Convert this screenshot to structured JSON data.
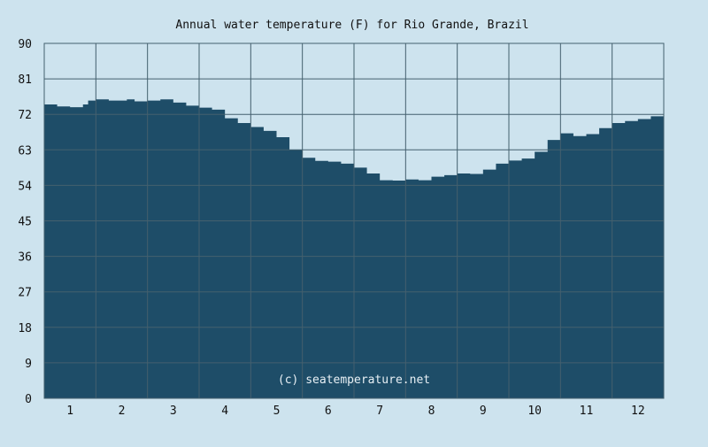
{
  "chart_data": {
    "type": "area",
    "title": "Annual water temperature (F) for Rio Grande, Brazil",
    "xlabel": "",
    "ylabel": "",
    "ylim": [
      0,
      90
    ],
    "yticks": [
      "0",
      "9",
      "18",
      "27",
      "36",
      "45",
      "54",
      "63",
      "72",
      "81",
      "90"
    ],
    "xticks": [
      "1",
      "2",
      "3",
      "4",
      "5",
      "6",
      "7",
      "8",
      "9",
      "10",
      "11",
      "12"
    ],
    "xlim": [
      0.5,
      12.5
    ],
    "grid": true,
    "watermark": "(c) seatemperature.net",
    "x": [
      0.5,
      0.75,
      1.0,
      1.25,
      1.35,
      1.5,
      1.75,
      2.0,
      2.1,
      2.25,
      2.5,
      2.75,
      3.0,
      3.25,
      3.5,
      3.75,
      4.0,
      4.25,
      4.5,
      4.75,
      5.0,
      5.25,
      5.5,
      5.75,
      6.0,
      6.25,
      6.5,
      6.75,
      7.0,
      7.25,
      7.5,
      7.75,
      8.0,
      8.25,
      8.5,
      8.75,
      9.0,
      9.25,
      9.5,
      9.75,
      10.0,
      10.25,
      10.5,
      10.75,
      11.0,
      11.25,
      11.5,
      11.75,
      12.0,
      12.25,
      12.5
    ],
    "values": [
      74.5,
      74.0,
      73.8,
      74.5,
      75.5,
      75.8,
      75.5,
      75.5,
      75.8,
      75.3,
      75.5,
      75.8,
      75.0,
      74.2,
      73.7,
      73.2,
      71.0,
      69.8,
      68.8,
      67.8,
      66.2,
      63.0,
      61.0,
      60.2,
      60.0,
      59.5,
      58.5,
      57.0,
      55.3,
      55.2,
      55.5,
      55.3,
      56.2,
      56.6,
      57.0,
      56.9,
      58.0,
      59.5,
      60.3,
      60.8,
      62.5,
      65.5,
      67.2,
      66.5,
      67.0,
      68.5,
      69.8,
      70.3,
      70.8,
      71.5,
      72.0
    ],
    "colors": {
      "background": "#cde3ee",
      "area": "#1e4d68",
      "grid": "#44606e",
      "text": "#111111"
    }
  }
}
